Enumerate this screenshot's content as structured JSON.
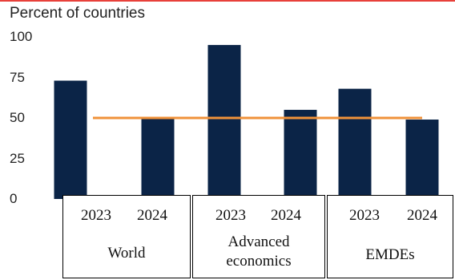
{
  "chart_data": {
    "type": "bar",
    "unit_label": "Percent of countries",
    "ylim": [
      0,
      100
    ],
    "yticks": [
      0,
      25,
      50,
      75,
      100
    ],
    "categories": [
      "2023",
      "2024",
      "2023",
      "2024",
      "2023",
      "2024"
    ],
    "groups": [
      "World",
      "Advanced\neconomics",
      "EMDEs"
    ],
    "values": [
      73,
      50,
      95,
      55,
      68,
      49
    ],
    "reference_line": 50,
    "colors": {
      "bar": "#0b2447",
      "reference_line": "#f0923a",
      "top_rule": "#e8403a"
    }
  }
}
